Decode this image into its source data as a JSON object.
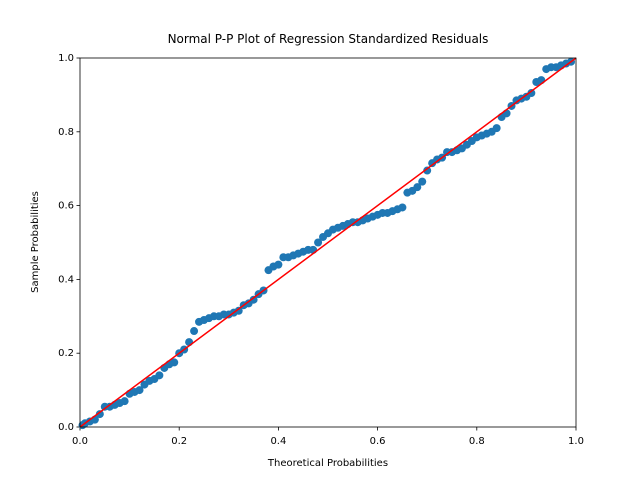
{
  "chart_data": {
    "type": "scatter",
    "title": "Normal P-P Plot of Regression Standardized Residuals",
    "xlabel": "Theoretical Probabilities",
    "ylabel": "Sample Probabilities",
    "xlim": [
      0,
      1
    ],
    "ylim": [
      0,
      1
    ],
    "xticks": [
      {
        "value": 0,
        "label": "0.0"
      },
      0.2,
      0.4,
      0.6,
      0.8,
      {
        "value": 1,
        "label": "1.0"
      }
    ],
    "yticks": [
      {
        "value": 0,
        "label": "0.0"
      },
      0.2,
      0.4,
      0.6,
      0.8,
      {
        "value": 1,
        "label": "1.0"
      }
    ],
    "x": [
      0.005,
      0.01,
      0.02,
      0.03,
      0.04,
      0.05,
      0.06,
      0.07,
      0.08,
      0.09,
      0.1,
      0.11,
      0.12,
      0.13,
      0.14,
      0.15,
      0.16,
      0.17,
      0.18,
      0.19,
      0.2,
      0.21,
      0.22,
      0.23,
      0.24,
      0.25,
      0.26,
      0.27,
      0.28,
      0.29,
      0.3,
      0.31,
      0.32,
      0.33,
      0.34,
      0.35,
      0.36,
      0.37,
      0.38,
      0.39,
      0.4,
      0.41,
      0.42,
      0.43,
      0.44,
      0.45,
      0.46,
      0.47,
      0.48,
      0.49,
      0.5,
      0.51,
      0.52,
      0.53,
      0.54,
      0.55,
      0.56,
      0.57,
      0.58,
      0.59,
      0.6,
      0.61,
      0.62,
      0.63,
      0.64,
      0.65,
      0.66,
      0.67,
      0.68,
      0.69,
      0.7,
      0.71,
      0.72,
      0.73,
      0.74,
      0.75,
      0.76,
      0.77,
      0.78,
      0.79,
      0.8,
      0.81,
      0.82,
      0.83,
      0.84,
      0.85,
      0.86,
      0.87,
      0.88,
      0.89,
      0.9,
      0.91,
      0.92,
      0.93,
      0.94,
      0.95,
      0.96,
      0.97,
      0.98,
      0.99
    ],
    "series": [
      {
        "color": "#1f77b4",
        "values": [
          0.005,
          0.01,
          0.015,
          0.02,
          0.035,
          0.055,
          0.055,
          0.06,
          0.065,
          0.07,
          0.09,
          0.095,
          0.1,
          0.115,
          0.125,
          0.13,
          0.14,
          0.16,
          0.17,
          0.175,
          0.2,
          0.21,
          0.23,
          0.26,
          0.285,
          0.29,
          0.295,
          0.3,
          0.3,
          0.305,
          0.305,
          0.31,
          0.315,
          0.33,
          0.335,
          0.345,
          0.36,
          0.37,
          0.425,
          0.435,
          0.44,
          0.46,
          0.46,
          0.465,
          0.47,
          0.475,
          0.48,
          0.48,
          0.5,
          0.515,
          0.525,
          0.535,
          0.54,
          0.545,
          0.55,
          0.555,
          0.555,
          0.56,
          0.565,
          0.57,
          0.575,
          0.58,
          0.58,
          0.585,
          0.59,
          0.595,
          0.635,
          0.64,
          0.65,
          0.665,
          0.695,
          0.715,
          0.725,
          0.73,
          0.745,
          0.745,
          0.75,
          0.755,
          0.765,
          0.775,
          0.785,
          0.79,
          0.795,
          0.8,
          0.81,
          0.84,
          0.85,
          0.87,
          0.885,
          0.89,
          0.895,
          0.905,
          0.935,
          0.94,
          0.97,
          0.975,
          0.975,
          0.98,
          0.985,
          0.99
        ]
      }
    ],
    "reference_line": {
      "color": "#ff0000",
      "x": [
        0,
        1
      ],
      "values": [
        0,
        1
      ]
    }
  }
}
